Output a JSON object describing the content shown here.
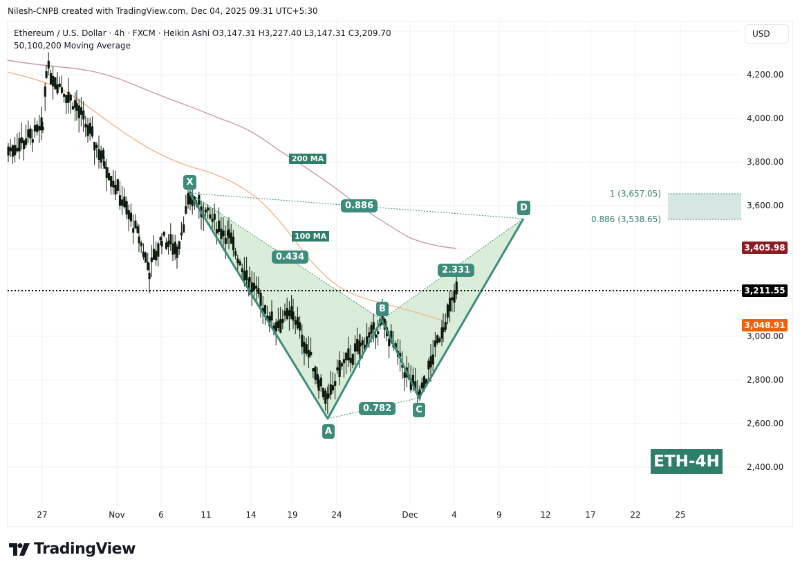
{
  "header": {
    "credit": "Nilesh-CNPB created with TradingView.com, Dec 04, 2025 09:31 UTC+5:30",
    "symbol_line": "Ethereum / U.S. Dollar · 4h · FXCM · Heikin Ashi  O3,147.31  H3,227.40  L3,147.31  C3,209.70",
    "indicator_line": "50,100,200 Moving Average"
  },
  "price_axis": {
    "currency_button": "USD",
    "ticks": [
      "4,200.00",
      "4,000.00",
      "3,800.00",
      "3,600.00",
      "3,000.00",
      "2,800.00",
      "2,600.00",
      "2,400.00"
    ],
    "tags": {
      "ma200": {
        "value": "3,405.98",
        "color": "#8b1c24"
      },
      "last": {
        "value": "3,211.55",
        "color": "#000000"
      },
      "ma100": {
        "value": "3,048.91",
        "color": "#f0620a"
      }
    }
  },
  "time_axis": {
    "ticks": [
      "27",
      "Nov",
      "6",
      "11",
      "14",
      "19",
      "24",
      "Dec",
      "4",
      "9",
      "12",
      "17",
      "22",
      "25"
    ]
  },
  "pattern": {
    "points": {
      "X": "X",
      "A": "A",
      "B": "B",
      "C": "C",
      "D": "D"
    },
    "ratios": {
      "xb": "0.434",
      "ac": "0.782",
      "bd": "2.331",
      "xd": "0.886"
    },
    "ma_labels": {
      "ma200": "200 MA",
      "ma100": "100 MA"
    },
    "fib_zone": {
      "top": "1 (3,657.05)",
      "bottom": "0.886 (3,538.65)"
    }
  },
  "badge": "ETH-4H",
  "brand": "TradingView",
  "colors": {
    "pattern": "#3d8b7a",
    "pattern_fill": "#d7ecd6",
    "ma100": "#f5b48a",
    "ma200": "#c89aa0",
    "candle": "#0d1a0d"
  },
  "chart_data": {
    "type": "candlestick",
    "title": "Ethereum / U.S. Dollar · 4h · FXCM · Heikin Ashi",
    "ohlc_last": {
      "open": 3147.31,
      "high": 3227.4,
      "low": 3147.31,
      "close": 3209.7
    },
    "last_price": 3211.55,
    "xlabel": "",
    "ylabel": "USD",
    "ylim": [
      2250,
      4330
    ],
    "x_ticks": [
      "27",
      "Nov",
      "6",
      "11",
      "14",
      "19",
      "24",
      "Dec",
      "4",
      "9",
      "12",
      "17",
      "22",
      "25"
    ],
    "y_ticks": [
      2400,
      2600,
      2800,
      3000,
      3200,
      3400,
      3600,
      3800,
      4000,
      4200
    ],
    "series": [
      {
        "name": "200 MA",
        "last": 3405.98,
        "approx_path": [
          [
            "Oct 24",
            4270
          ],
          [
            "Oct 30",
            4220
          ],
          [
            "Nov 6",
            4080
          ],
          [
            "Nov 14",
            3900
          ],
          [
            "Nov 24",
            3600
          ],
          [
            "Dec 1",
            3405.98
          ]
        ]
      },
      {
        "name": "100 MA",
        "last": 3048.91,
        "approx_path": [
          [
            "Oct 24",
            4100
          ],
          [
            "Nov 1",
            3980
          ],
          [
            "Nov 9",
            3750
          ],
          [
            "Nov 19",
            3520
          ],
          [
            "Nov 26",
            3150
          ],
          [
            "Dec 3",
            3048.91
          ]
        ]
      }
    ],
    "harmonic_pattern": {
      "X": 3657,
      "A": 2620,
      "B": 3060,
      "C": 2720,
      "D": 3538.65,
      "ratios": {
        "XB": 0.434,
        "AC": 0.782,
        "BD": 2.331,
        "XD": 0.886
      },
      "prz": {
        "fib_1": 3657.05,
        "fib_0_886": 3538.65
      }
    },
    "approx_price_path": [
      [
        "Oct 24",
        3850
      ],
      [
        "Oct 27",
        3950
      ],
      [
        "Oct 28",
        4230
      ],
      [
        "Oct 31",
        4050
      ],
      [
        "Nov 3",
        3800
      ],
      [
        "Nov 4",
        3450
      ],
      [
        "Nov 5",
        3300
      ],
      [
        "Nov 6",
        3450
      ],
      [
        "Nov 8",
        3400
      ],
      [
        "Nov 10",
        3640
      ],
      [
        "Nov 13",
        3450
      ],
      [
        "Nov 15",
        3250
      ],
      [
        "Nov 17",
        3050
      ],
      [
        "Nov 19",
        3100
      ],
      [
        "Nov 21",
        2800
      ],
      [
        "Nov 22",
        2700
      ],
      [
        "Nov 24",
        2850
      ],
      [
        "Nov 27",
        2950
      ],
      [
        "Nov 29",
        3060
      ],
      [
        "Dec 1",
        2800
      ],
      [
        "Dec 2",
        2720
      ],
      [
        "Dec 3",
        3050
      ],
      [
        "Dec 4",
        3210
      ]
    ],
    "legend": [
      "50,100,200 Moving Average"
    ],
    "annotations": [
      "200 MA",
      "100 MA",
      "X",
      "A",
      "B",
      "C",
      "D",
      "0.434",
      "0.782",
      "2.331",
      "0.886",
      "1 (3,657.05)",
      "0.886 (3,538.65)",
      "ETH-4H"
    ],
    "grid": true
  }
}
